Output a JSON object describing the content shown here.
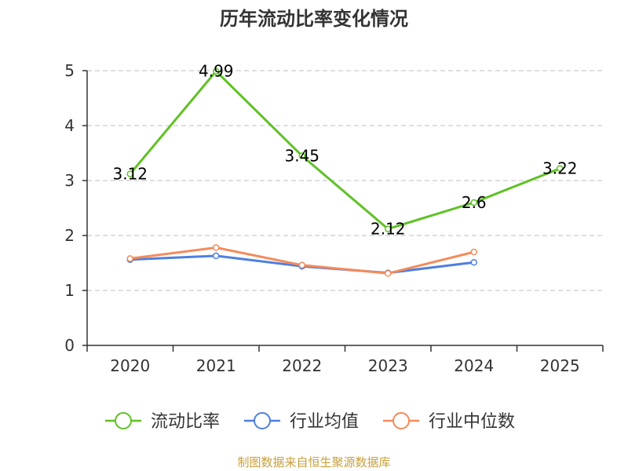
{
  "chart_data": {
    "type": "line",
    "title": "历年流动比率变化情况",
    "categories": [
      "2020",
      "2021",
      "2022",
      "2023",
      "2024",
      "2025"
    ],
    "ylim": [
      0,
      5
    ],
    "yticks": [
      "0",
      "1",
      "2",
      "3",
      "4",
      "5"
    ],
    "grid": true,
    "legend_position": "bottom",
    "series": [
      {
        "name": "流动比率",
        "color": "#5fc125",
        "values": [
          3.12,
          4.99,
          3.45,
          2.12,
          2.6,
          3.22
        ],
        "labels": [
          "3.12",
          "4.99",
          "3.45",
          "2.12",
          "2.6",
          "3.22"
        ]
      },
      {
        "name": "行业均值",
        "color": "#4e7fe0",
        "values": [
          1.56,
          1.63,
          1.44,
          1.32,
          1.51,
          null
        ]
      },
      {
        "name": "行业中位数",
        "color": "#f48b5b",
        "values": [
          1.58,
          1.78,
          1.46,
          1.31,
          1.7,
          null
        ]
      }
    ],
    "source": "制图数据来自恒生聚源数据库",
    "source_color": "#c8a03c"
  }
}
